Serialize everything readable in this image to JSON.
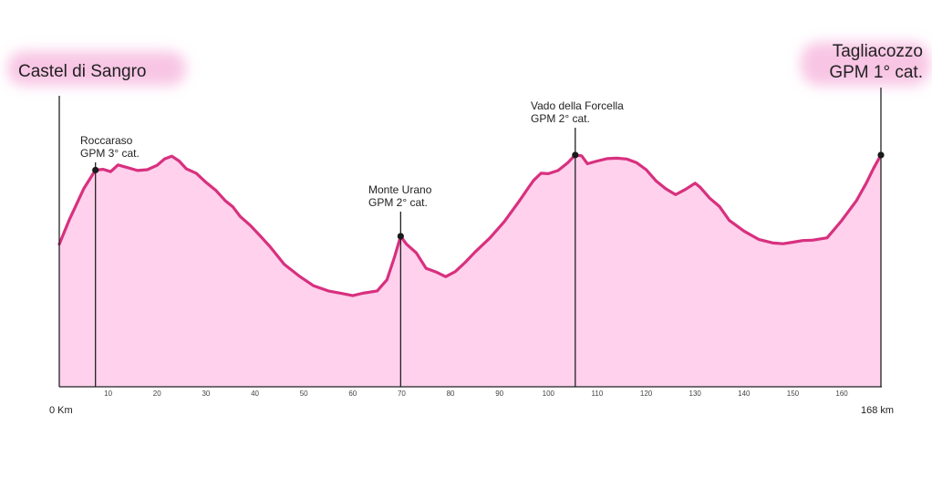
{
  "chart_data": {
    "type": "area",
    "title": "",
    "xlabel": "",
    "ylabel": "",
    "xlim": [
      0,
      168
    ],
    "start_label": "0 Km",
    "end_label": "168 km",
    "start_city": "Castel di Sangro",
    "finish": {
      "name": "Tagliacozzo",
      "climb": "GPM 1° cat."
    },
    "x_ticks": [
      10,
      20,
      30,
      40,
      50,
      60,
      70,
      80,
      90,
      100,
      110,
      120,
      130,
      140,
      150,
      160
    ],
    "climbs": [
      {
        "name": "Roccaraso",
        "category": "GPM 3° cat.",
        "km": 7.4
      },
      {
        "name": "Monte Urano",
        "category": "GPM 2° cat.",
        "km": 69.8
      },
      {
        "name": "Vado della Forcella",
        "category": "GPM 2° cat.",
        "km": 105.5
      },
      {
        "name": "Tagliacozzo",
        "category": "GPM 1° cat.",
        "km": 168
      }
    ],
    "profile": {
      "x": [
        0,
        2,
        5,
        7.4,
        9,
        10.5,
        12,
        14,
        16,
        18,
        20,
        21.5,
        23,
        24.5,
        26,
        28,
        30,
        32,
        34,
        35.5,
        37,
        39,
        41,
        43,
        46,
        49,
        52,
        55,
        58,
        60,
        62,
        65,
        67,
        68.5,
        69.8,
        71,
        73,
        75,
        77,
        79,
        81,
        83,
        85,
        88,
        91,
        94,
        96,
        97,
        98.5,
        100,
        102,
        104,
        105.5,
        106.8,
        108,
        110,
        112,
        114,
        116,
        118,
        120,
        122,
        124,
        126,
        128,
        130,
        131,
        133,
        135,
        137,
        140,
        143,
        146,
        148,
        150,
        152,
        154,
        157,
        160,
        163,
        165,
        166.5,
        168
      ],
      "elevation": [
        36,
        42,
        50,
        54.7,
        54.9,
        54.3,
        56,
        55.3,
        54.6,
        54.8,
        55.9,
        57.5,
        58.2,
        57,
        55,
        53.9,
        51.6,
        49.6,
        46.9,
        45.4,
        43,
        40.8,
        38.2,
        35.5,
        30.9,
        28,
        25.5,
        24.2,
        23.5,
        23,
        23.6,
        24.2,
        27,
        32.6,
        38,
        36,
        33.8,
        29.9,
        29,
        27.8,
        29.1,
        31.4,
        34,
        37.5,
        41.7,
        46.8,
        50.4,
        52.1,
        53.9,
        53.8,
        54.6,
        56.6,
        58.5,
        58.3,
        56.3,
        57,
        57.6,
        57.7,
        57.5,
        56.6,
        54.8,
        52,
        50,
        48.5,
        49.8,
        51.4,
        50.4,
        47.6,
        45.5,
        42,
        39.3,
        37.2,
        36.3,
        36.1,
        36.5,
        36.9,
        37,
        37.6,
        42,
        47,
        51.4,
        55.2,
        58.5
      ]
    }
  }
}
